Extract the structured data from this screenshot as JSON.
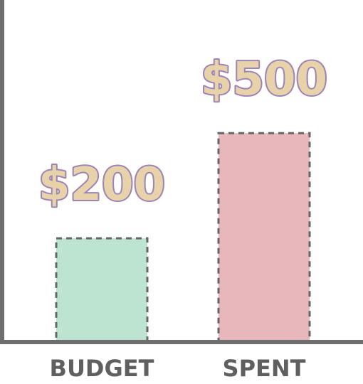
{
  "chart_data": {
    "type": "bar",
    "categories": [
      "BUDGET",
      "SPENT"
    ],
    "values": [
      200,
      500
    ],
    "value_labels": [
      "$200",
      "$500"
    ],
    "title": "",
    "xlabel": "",
    "ylabel": "",
    "ylim": [
      0,
      700
    ],
    "grid": false,
    "legend": "none"
  },
  "colors": {
    "bars": [
      "#bde4d0",
      "#e8b7bb"
    ],
    "bar_border": "#666666",
    "axis": "#6e6e6e",
    "value_label_fill": "#e8d2aa",
    "value_label_stroke": "#9d84b7",
    "category_label": "#5f5f5f"
  }
}
